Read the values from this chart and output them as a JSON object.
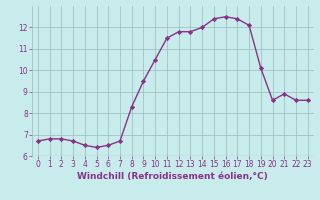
{
  "x": [
    0,
    1,
    2,
    3,
    4,
    5,
    6,
    7,
    8,
    9,
    10,
    11,
    12,
    13,
    14,
    15,
    16,
    17,
    18,
    19,
    20,
    21,
    22,
    23
  ],
  "y": [
    6.7,
    6.8,
    6.8,
    6.7,
    6.5,
    6.4,
    6.5,
    6.7,
    8.3,
    9.5,
    10.5,
    11.5,
    11.8,
    11.8,
    12.0,
    12.4,
    12.5,
    12.4,
    12.1,
    10.1,
    8.6,
    8.9,
    8.6,
    8.6
  ],
  "line_color": "#883388",
  "marker": "D",
  "marker_size": 2.2,
  "bg_color": "#c8ecec",
  "grid_color": "#99bbbb",
  "xlabel": "Windchill (Refroidissement éolien,°C)",
  "xlabel_color": "#883388",
  "tick_color": "#883388",
  "ylim": [
    6,
    13
  ],
  "xlim": [
    -0.5,
    23.5
  ],
  "yticks": [
    6,
    7,
    8,
    9,
    10,
    11,
    12
  ],
  "xticks": [
    0,
    1,
    2,
    3,
    4,
    5,
    6,
    7,
    8,
    9,
    10,
    11,
    12,
    13,
    14,
    15,
    16,
    17,
    18,
    19,
    20,
    21,
    22,
    23
  ],
  "label_fontsize": 6.5,
  "tick_fontsize": 5.5,
  "line_width": 1.0
}
